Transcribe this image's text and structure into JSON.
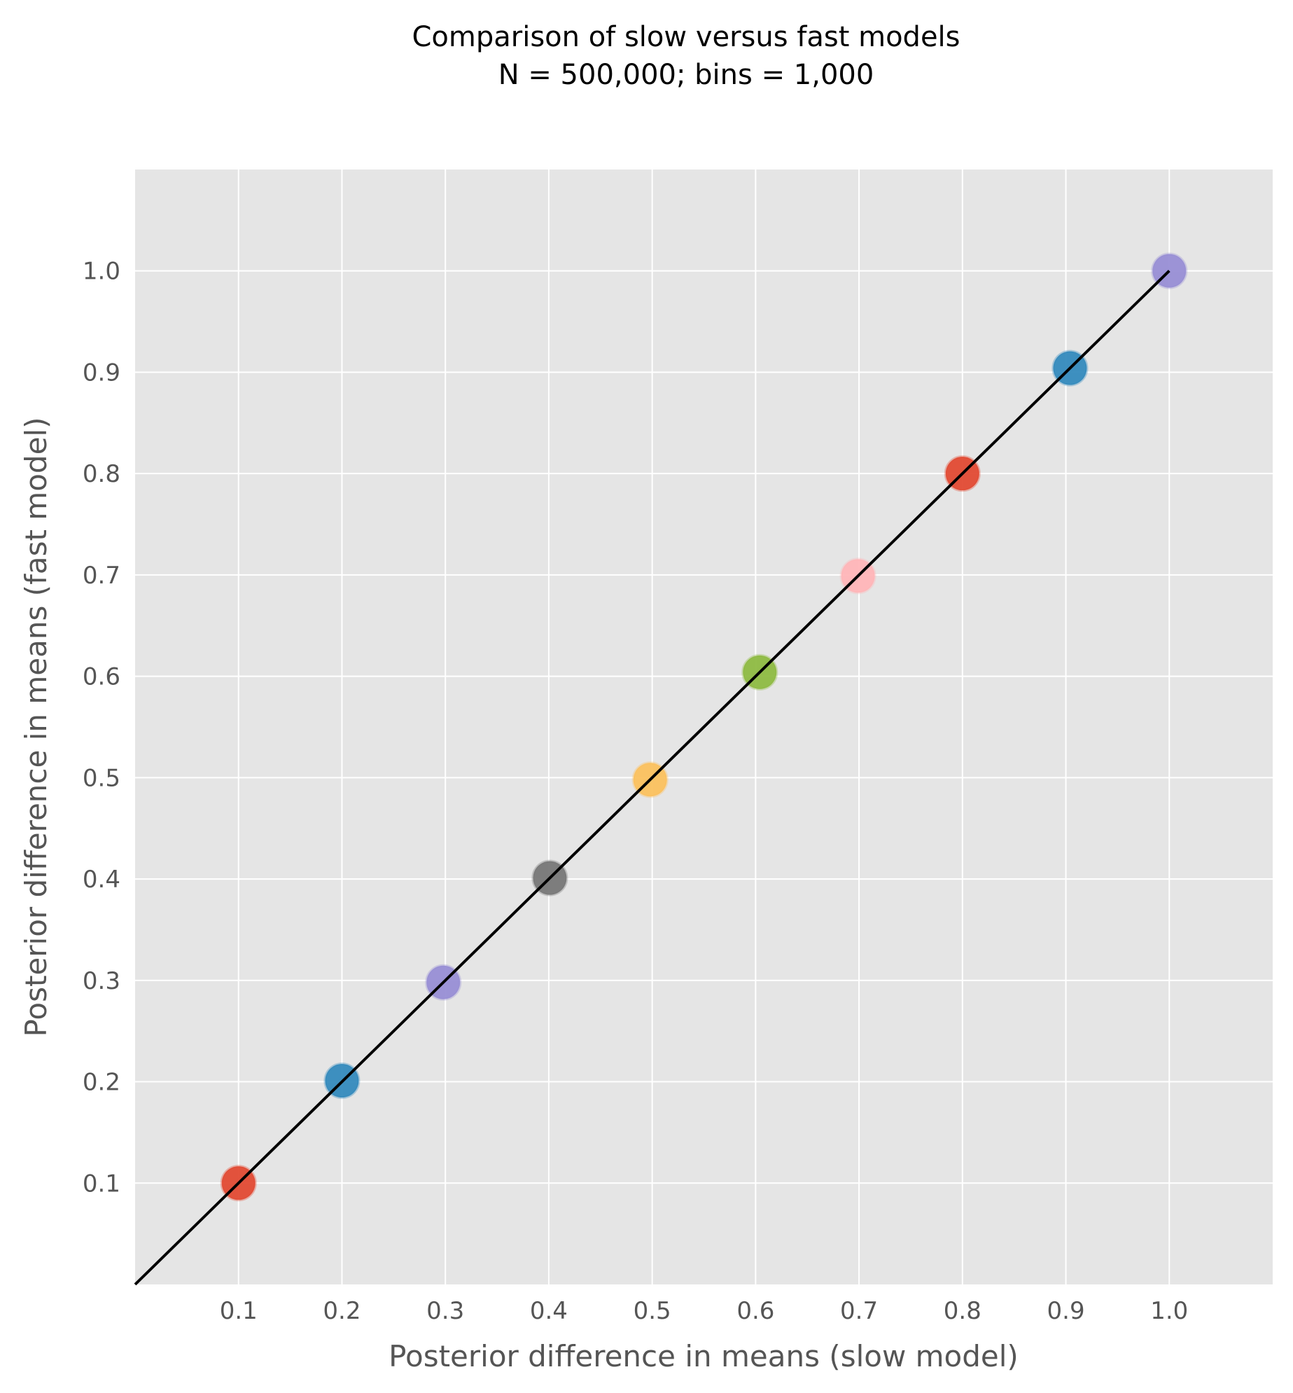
{
  "chart_data": {
    "type": "scatter",
    "title": "Comparison of slow versus fast models",
    "subtitle": "N = 500,000; bins = 1,000",
    "xlabel": "Posterior difference in means (slow model)",
    "ylabel": "Posterior difference in means (fast model)",
    "xlim": [
      0.0,
      1.1
    ],
    "ylim": [
      0.0,
      1.1
    ],
    "xticks": [
      0.1,
      0.2,
      0.3,
      0.4,
      0.5,
      0.6,
      0.7,
      0.8,
      0.9,
      1.0
    ],
    "yticks": [
      0.1,
      0.2,
      0.3,
      0.4,
      0.5,
      0.6,
      0.7,
      0.8,
      0.9,
      1.0
    ],
    "xtick_labels": [
      "0.1",
      "0.2",
      "0.3",
      "0.4",
      "0.5",
      "0.6",
      "0.7",
      "0.8",
      "0.9",
      "1.0"
    ],
    "ytick_labels": [
      "0.1",
      "0.2",
      "0.3",
      "0.4",
      "0.5",
      "0.6",
      "0.7",
      "0.8",
      "0.9",
      "1.0"
    ],
    "grid": true,
    "points": [
      {
        "x": 0.1,
        "y": 0.1,
        "color": "#E24A33"
      },
      {
        "x": 0.2,
        "y": 0.201,
        "color": "#348ABD"
      },
      {
        "x": 0.298,
        "y": 0.298,
        "color": "#988ED5"
      },
      {
        "x": 0.401,
        "y": 0.401,
        "color": "#777777"
      },
      {
        "x": 0.498,
        "y": 0.498,
        "color": "#FBC15E"
      },
      {
        "x": 0.604,
        "y": 0.604,
        "color": "#8EBA42"
      },
      {
        "x": 0.699,
        "y": 0.699,
        "color": "#FFB5B8"
      },
      {
        "x": 0.8,
        "y": 0.8,
        "color": "#E24A33"
      },
      {
        "x": 0.904,
        "y": 0.904,
        "color": "#348ABD"
      },
      {
        "x": 1.0,
        "y": 1.0,
        "color": "#988ED5"
      }
    ],
    "reference_line": {
      "x": [
        0.0,
        1.0
      ],
      "y": [
        0.0,
        1.0
      ],
      "color": "#000000"
    },
    "colors": {
      "plot_background": "#E5E5E5",
      "grid": "#FFFFFF",
      "tick_text": "#555555"
    }
  }
}
